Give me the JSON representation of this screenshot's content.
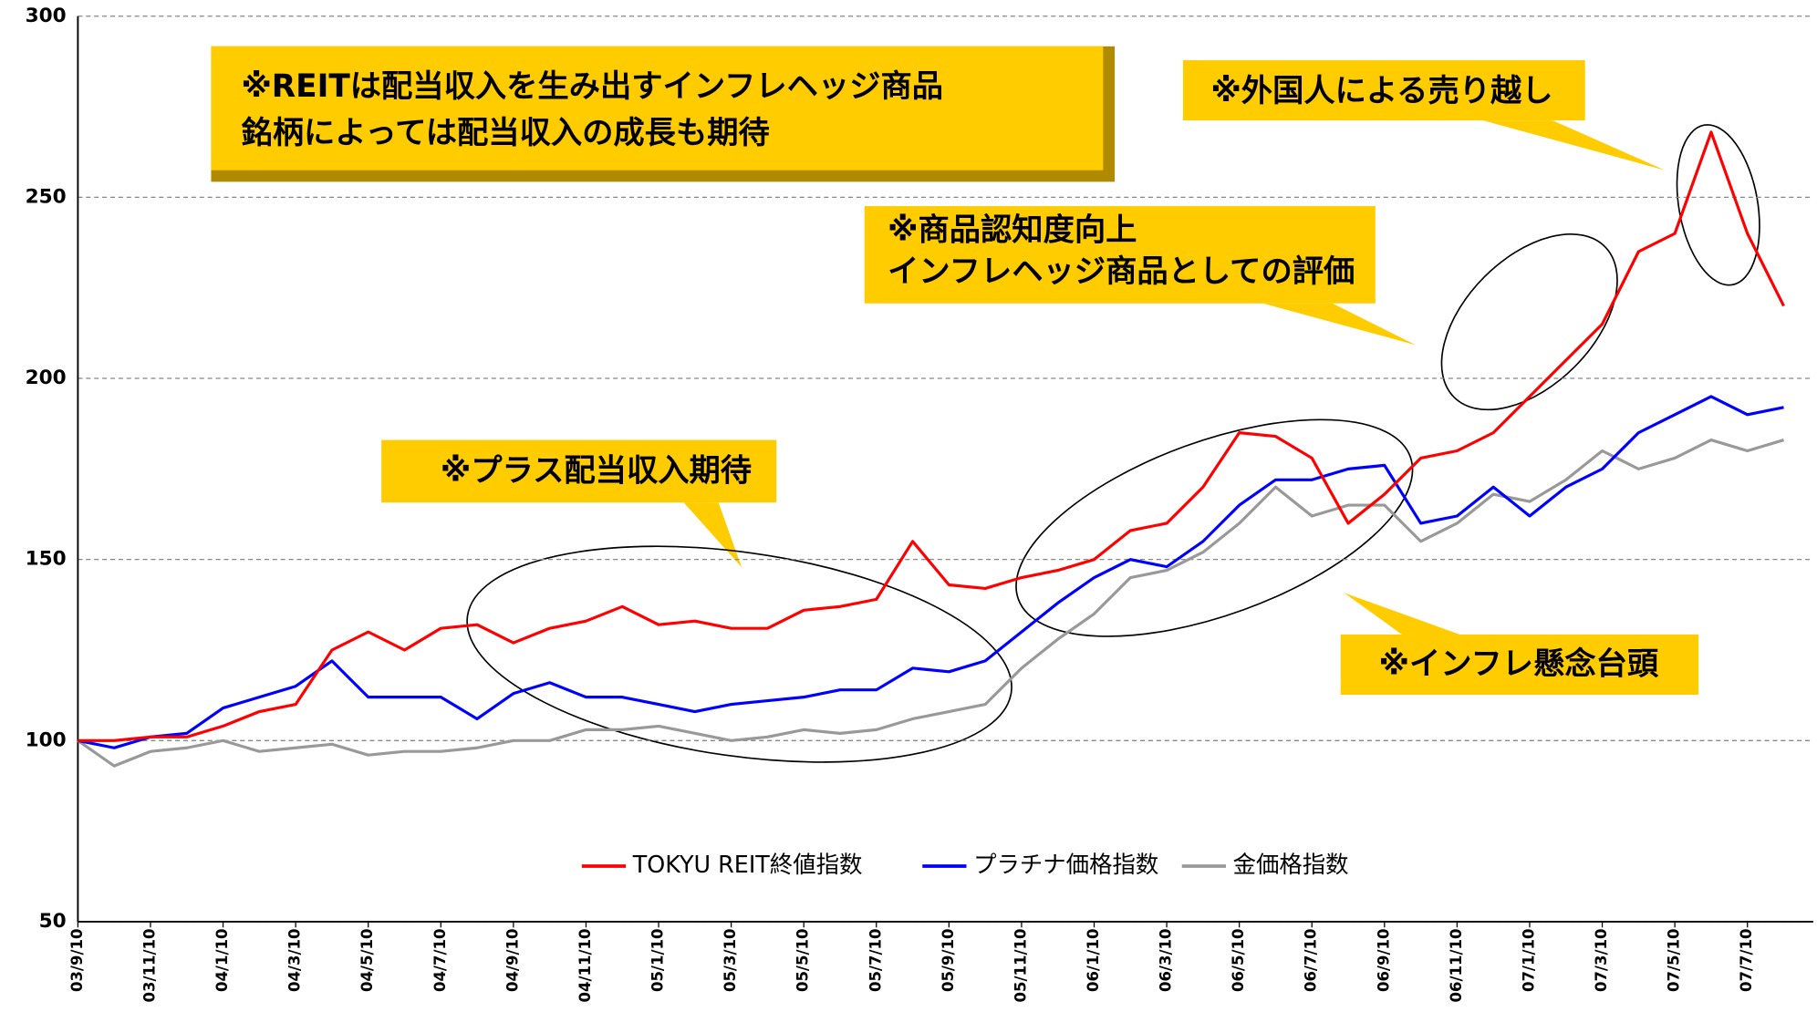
{
  "chart_data": {
    "type": "line",
    "categories": [
      "03/9/10",
      null,
      "03/11/10",
      null,
      "04/1/10",
      null,
      "04/3/10",
      null,
      "04/5/10",
      null,
      "04/7/10",
      null,
      "04/9/10",
      null,
      "04/11/10",
      null,
      "05/1/10",
      null,
      "05/3/10",
      null,
      "05/5/10",
      null,
      "05/7/10",
      null,
      "05/9/10",
      null,
      "05/11/10",
      null,
      "06/1/10",
      null,
      "06/3/10",
      null,
      "06/5/10",
      null,
      "06/7/10",
      null,
      "06/9/10",
      null,
      "06/11/10",
      null,
      "07/1/10",
      null,
      "07/3/10",
      null,
      "07/5/10",
      null,
      "07/7/10",
      null
    ],
    "series": [
      {
        "name": "TOKYU REIT終値指数",
        "color": "#ff0000",
        "values": [
          100,
          100,
          101,
          101,
          104,
          108,
          110,
          125,
          130,
          125,
          131,
          132,
          127,
          131,
          133,
          137,
          132,
          133,
          131,
          131,
          136,
          137,
          139,
          155,
          143,
          142,
          145,
          147,
          150,
          158,
          160,
          170,
          185,
          184,
          178,
          160,
          168,
          178,
          180,
          185,
          195,
          205,
          215,
          235,
          240,
          268,
          240,
          220
        ]
      },
      {
        "name": "プラチナ価格指数",
        "color": "#0000ff",
        "values": [
          100,
          98,
          101,
          102,
          109,
          112,
          115,
          122,
          112,
          112,
          112,
          106,
          113,
          116,
          112,
          112,
          110,
          108,
          110,
          111,
          112,
          114,
          114,
          120,
          119,
          122,
          130,
          138,
          145,
          150,
          148,
          155,
          165,
          172,
          172,
          175,
          176,
          160,
          162,
          170,
          162,
          170,
          175,
          185,
          190,
          195,
          190,
          192
        ]
      },
      {
        "name": "金価格指数",
        "color": "#999999",
        "values": [
          100,
          93,
          97,
          98,
          100,
          97,
          98,
          99,
          96,
          97,
          97,
          98,
          100,
          100,
          103,
          103,
          104,
          102,
          100,
          101,
          103,
          102,
          103,
          106,
          108,
          110,
          120,
          128,
          135,
          145,
          147,
          152,
          160,
          170,
          162,
          165,
          165,
          155,
          160,
          168,
          166,
          172,
          180,
          175,
          178,
          183,
          180,
          183
        ]
      }
    ],
    "ylim": [
      50,
      300
    ],
    "yticks": [
      50,
      100,
      150,
      200,
      250,
      300
    ],
    "grid": true,
    "legend": "bottom",
    "annotations": [
      {
        "lines": [
          "※REITは配当収入を生み出すインフレヘッジ商品",
          "銘柄によっては配当収入の成長も期待"
        ]
      },
      {
        "lines": [
          "※外国人による売り越し"
        ]
      },
      {
        "lines": [
          "※商品認知度向上",
          "インフレヘッジ商品としての評価"
        ]
      },
      {
        "lines": [
          "※プラス配当収入期待"
        ]
      },
      {
        "lines": [
          "※インフレ懸念台頭"
        ]
      }
    ]
  }
}
